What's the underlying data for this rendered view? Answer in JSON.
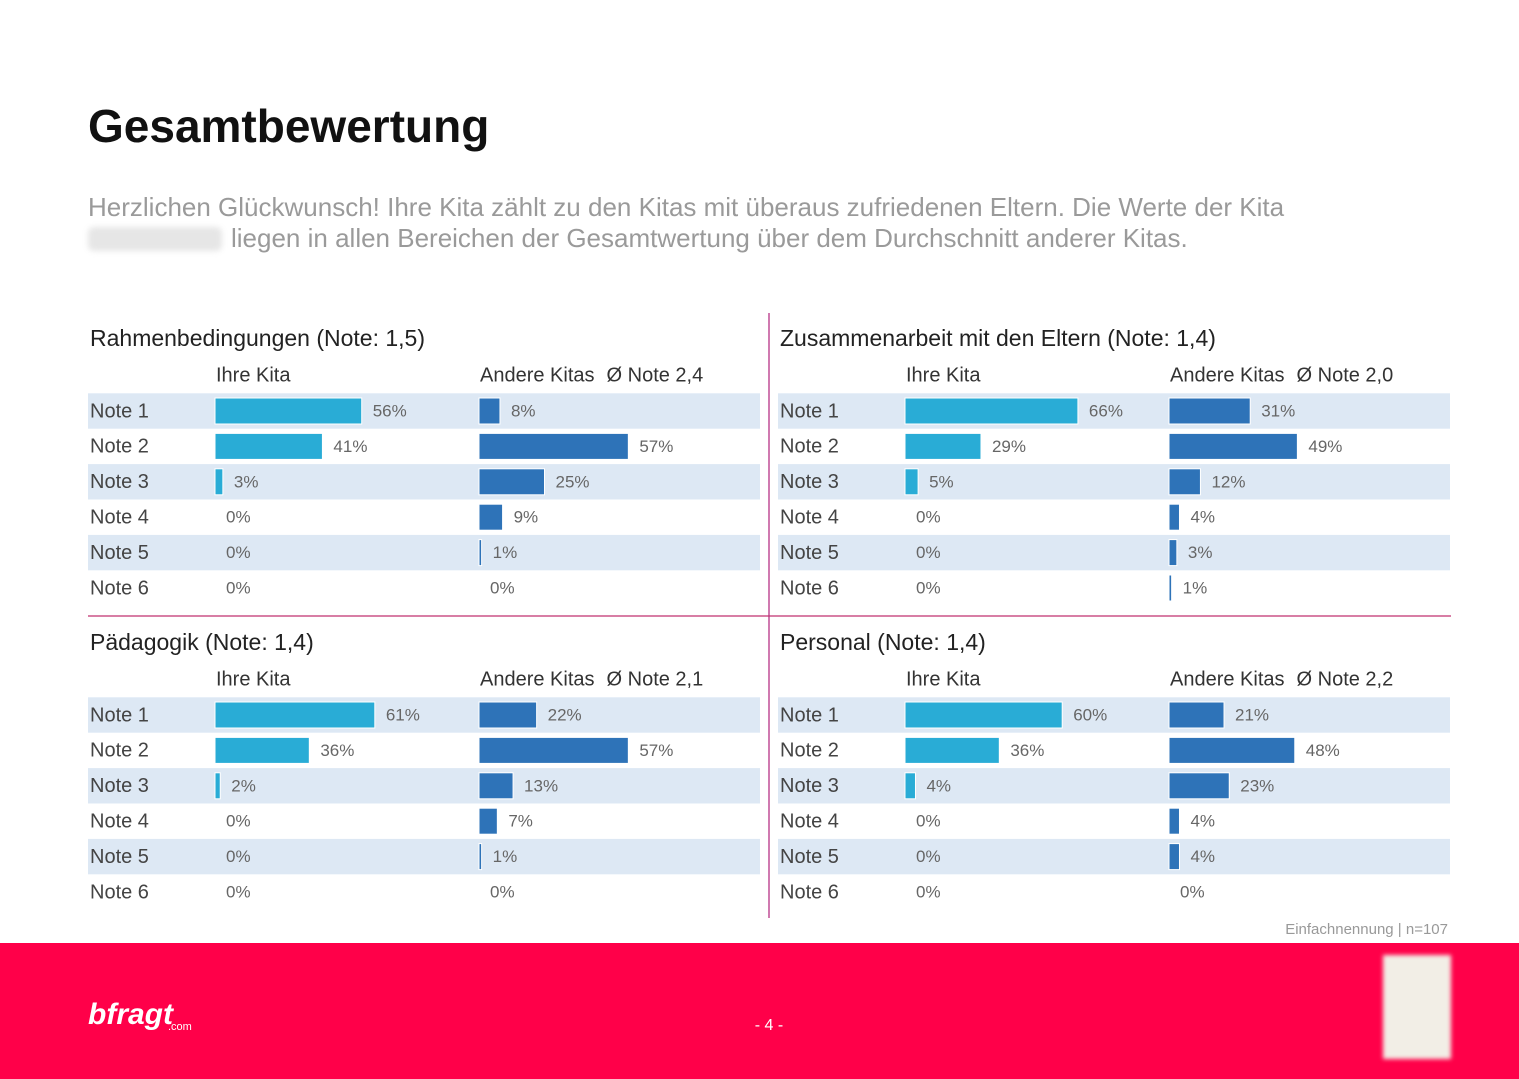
{
  "header": {
    "title": "Gesamtbewertung",
    "intro": [
      "Herzlichen Glückwunsch! Ihre Kita zählt zu den Kitas mit überaus zufriedenen Eltern. Die Werte der Kita",
      "liegen in allen Bereichen der Gesamtwertung über dem Durchschnitt anderer Kitas."
    ]
  },
  "chart_data": [
    {
      "type": "bar",
      "title": "Rahmenbedingungen (Note: 1,5)",
      "subtitle": "Ø Note 2,4",
      "categories": [
        "Note 1",
        "Note 2",
        "Note 3",
        "Note 4",
        "Note 5",
        "Note 6"
      ],
      "xlim": [
        0,
        100
      ],
      "series": [
        {
          "name": "Ihre Kita",
          "color": "#29acd6",
          "values": [
            56,
            41,
            3,
            0,
            0,
            0
          ],
          "value_labels": [
            "56%",
            "41%",
            "3%",
            "0%",
            "0%",
            "0%"
          ]
        },
        {
          "name": "Andere Kitas",
          "color": "#2e73b8",
          "values": [
            8,
            57,
            25,
            9,
            1,
            0
          ],
          "value_labels": [
            "8%",
            "57%",
            "25%",
            "9%",
            "1%",
            "0%"
          ]
        }
      ]
    },
    {
      "type": "bar",
      "title": "Zusammenarbeit mit den Eltern (Note: 1,4)",
      "subtitle": "Ø Note 2,0",
      "categories": [
        "Note 1",
        "Note 2",
        "Note 3",
        "Note 4",
        "Note 5",
        "Note 6"
      ],
      "xlim": [
        0,
        100
      ],
      "series": [
        {
          "name": "Ihre Kita",
          "color": "#29acd6",
          "values": [
            66,
            29,
            5,
            0,
            0,
            0
          ],
          "value_labels": [
            "66%",
            "29%",
            "5%",
            "0%",
            "0%",
            "0%"
          ]
        },
        {
          "name": "Andere Kitas",
          "color": "#2e73b8",
          "values": [
            31,
            49,
            12,
            4,
            3,
            1
          ],
          "value_labels": [
            "31%",
            "49%",
            "12%",
            "4%",
            "3%",
            "1%"
          ]
        }
      ]
    },
    {
      "type": "bar",
      "title": "Pädagogik (Note: 1,4)",
      "subtitle": "Ø Note 2,1",
      "categories": [
        "Note 1",
        "Note 2",
        "Note 3",
        "Note 4",
        "Note 5",
        "Note 6"
      ],
      "xlim": [
        0,
        100
      ],
      "series": [
        {
          "name": "Ihre Kita",
          "color": "#29acd6",
          "values": [
            61,
            36,
            2,
            0,
            0,
            0
          ],
          "value_labels": [
            "61%",
            "36%",
            "2%",
            "0%",
            "0%",
            "0%"
          ]
        },
        {
          "name": "Andere Kitas",
          "color": "#2e73b8",
          "values": [
            22,
            57,
            13,
            7,
            1,
            0
          ],
          "value_labels": [
            "22%",
            "57%",
            "13%",
            "7%",
            "1%",
            "0%"
          ]
        }
      ]
    },
    {
      "type": "bar",
      "title": "Personal (Note: 1,4)",
      "subtitle": "Ø Note 2,2",
      "categories": [
        "Note 1",
        "Note 2",
        "Note 3",
        "Note 4",
        "Note 5",
        "Note 6"
      ],
      "xlim": [
        0,
        100
      ],
      "series": [
        {
          "name": "Ihre Kita",
          "color": "#29acd6",
          "values": [
            60,
            36,
            4,
            0,
            0,
            0
          ],
          "value_labels": [
            "60%",
            "36%",
            "4%",
            "0%",
            "0%",
            "0%"
          ]
        },
        {
          "name": "Andere Kitas",
          "color": "#2e73b8",
          "values": [
            21,
            48,
            23,
            4,
            4,
            0
          ],
          "value_labels": [
            "21%",
            "48%",
            "23%",
            "4%",
            "4%",
            "0%"
          ]
        }
      ]
    }
  ],
  "footer": {
    "note": "Einfachnennung | n=107",
    "page": "- 4 -",
    "logo": "bfragt",
    "logo_suffix": ".com"
  }
}
